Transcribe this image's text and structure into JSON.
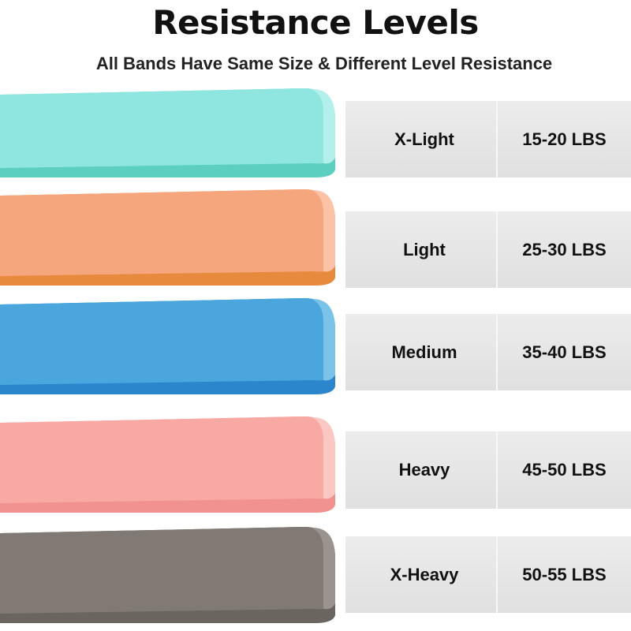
{
  "header": {
    "title": "Resistance Levels",
    "subtitle": "All Bands Have Same Size & Different Level Resistance"
  },
  "bands": [
    {
      "level": "X-Light",
      "resistance": "15-20 LBS"
    },
    {
      "level": "Light",
      "resistance": "25-30 LBS"
    },
    {
      "level": "Medium",
      "resistance": "35-40 LBS"
    },
    {
      "level": "Heavy",
      "resistance": "45-50 LBS"
    },
    {
      "level": "X-Heavy",
      "resistance": "50-55 LBS"
    }
  ]
}
